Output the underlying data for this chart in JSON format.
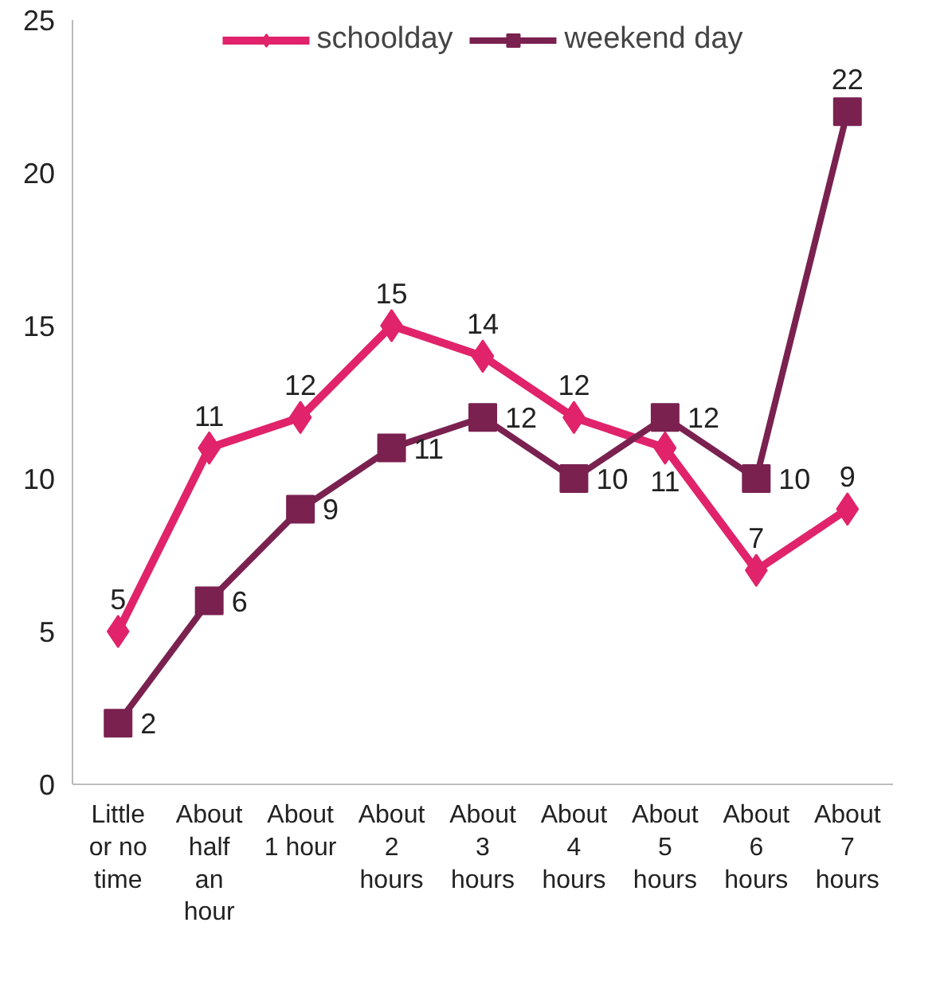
{
  "chart_data": {
    "type": "line",
    "categories": [
      "Little or no time",
      "About half an hour",
      "About 1 hour",
      "About 2 hours",
      "About 3 hours",
      "About 4 hours",
      "About 5 hours",
      "About 6 hours",
      "About 7 hours"
    ],
    "series": [
      {
        "name": "schoolday",
        "color": "#e0236a",
        "marker": "diamond",
        "values": [
          5,
          11,
          12,
          15,
          14,
          12,
          11,
          7,
          9
        ]
      },
      {
        "name": "weekend day",
        "color": "#7a2150",
        "marker": "square",
        "values": [
          2,
          6,
          9,
          11,
          12,
          10,
          12,
          10,
          22
        ]
      }
    ],
    "ylim": [
      0,
      25
    ],
    "yticks": [
      0,
      5,
      10,
      15,
      20,
      25
    ],
    "grid": false,
    "legend": "top",
    "data_labels": true,
    "line_style": "solid"
  }
}
